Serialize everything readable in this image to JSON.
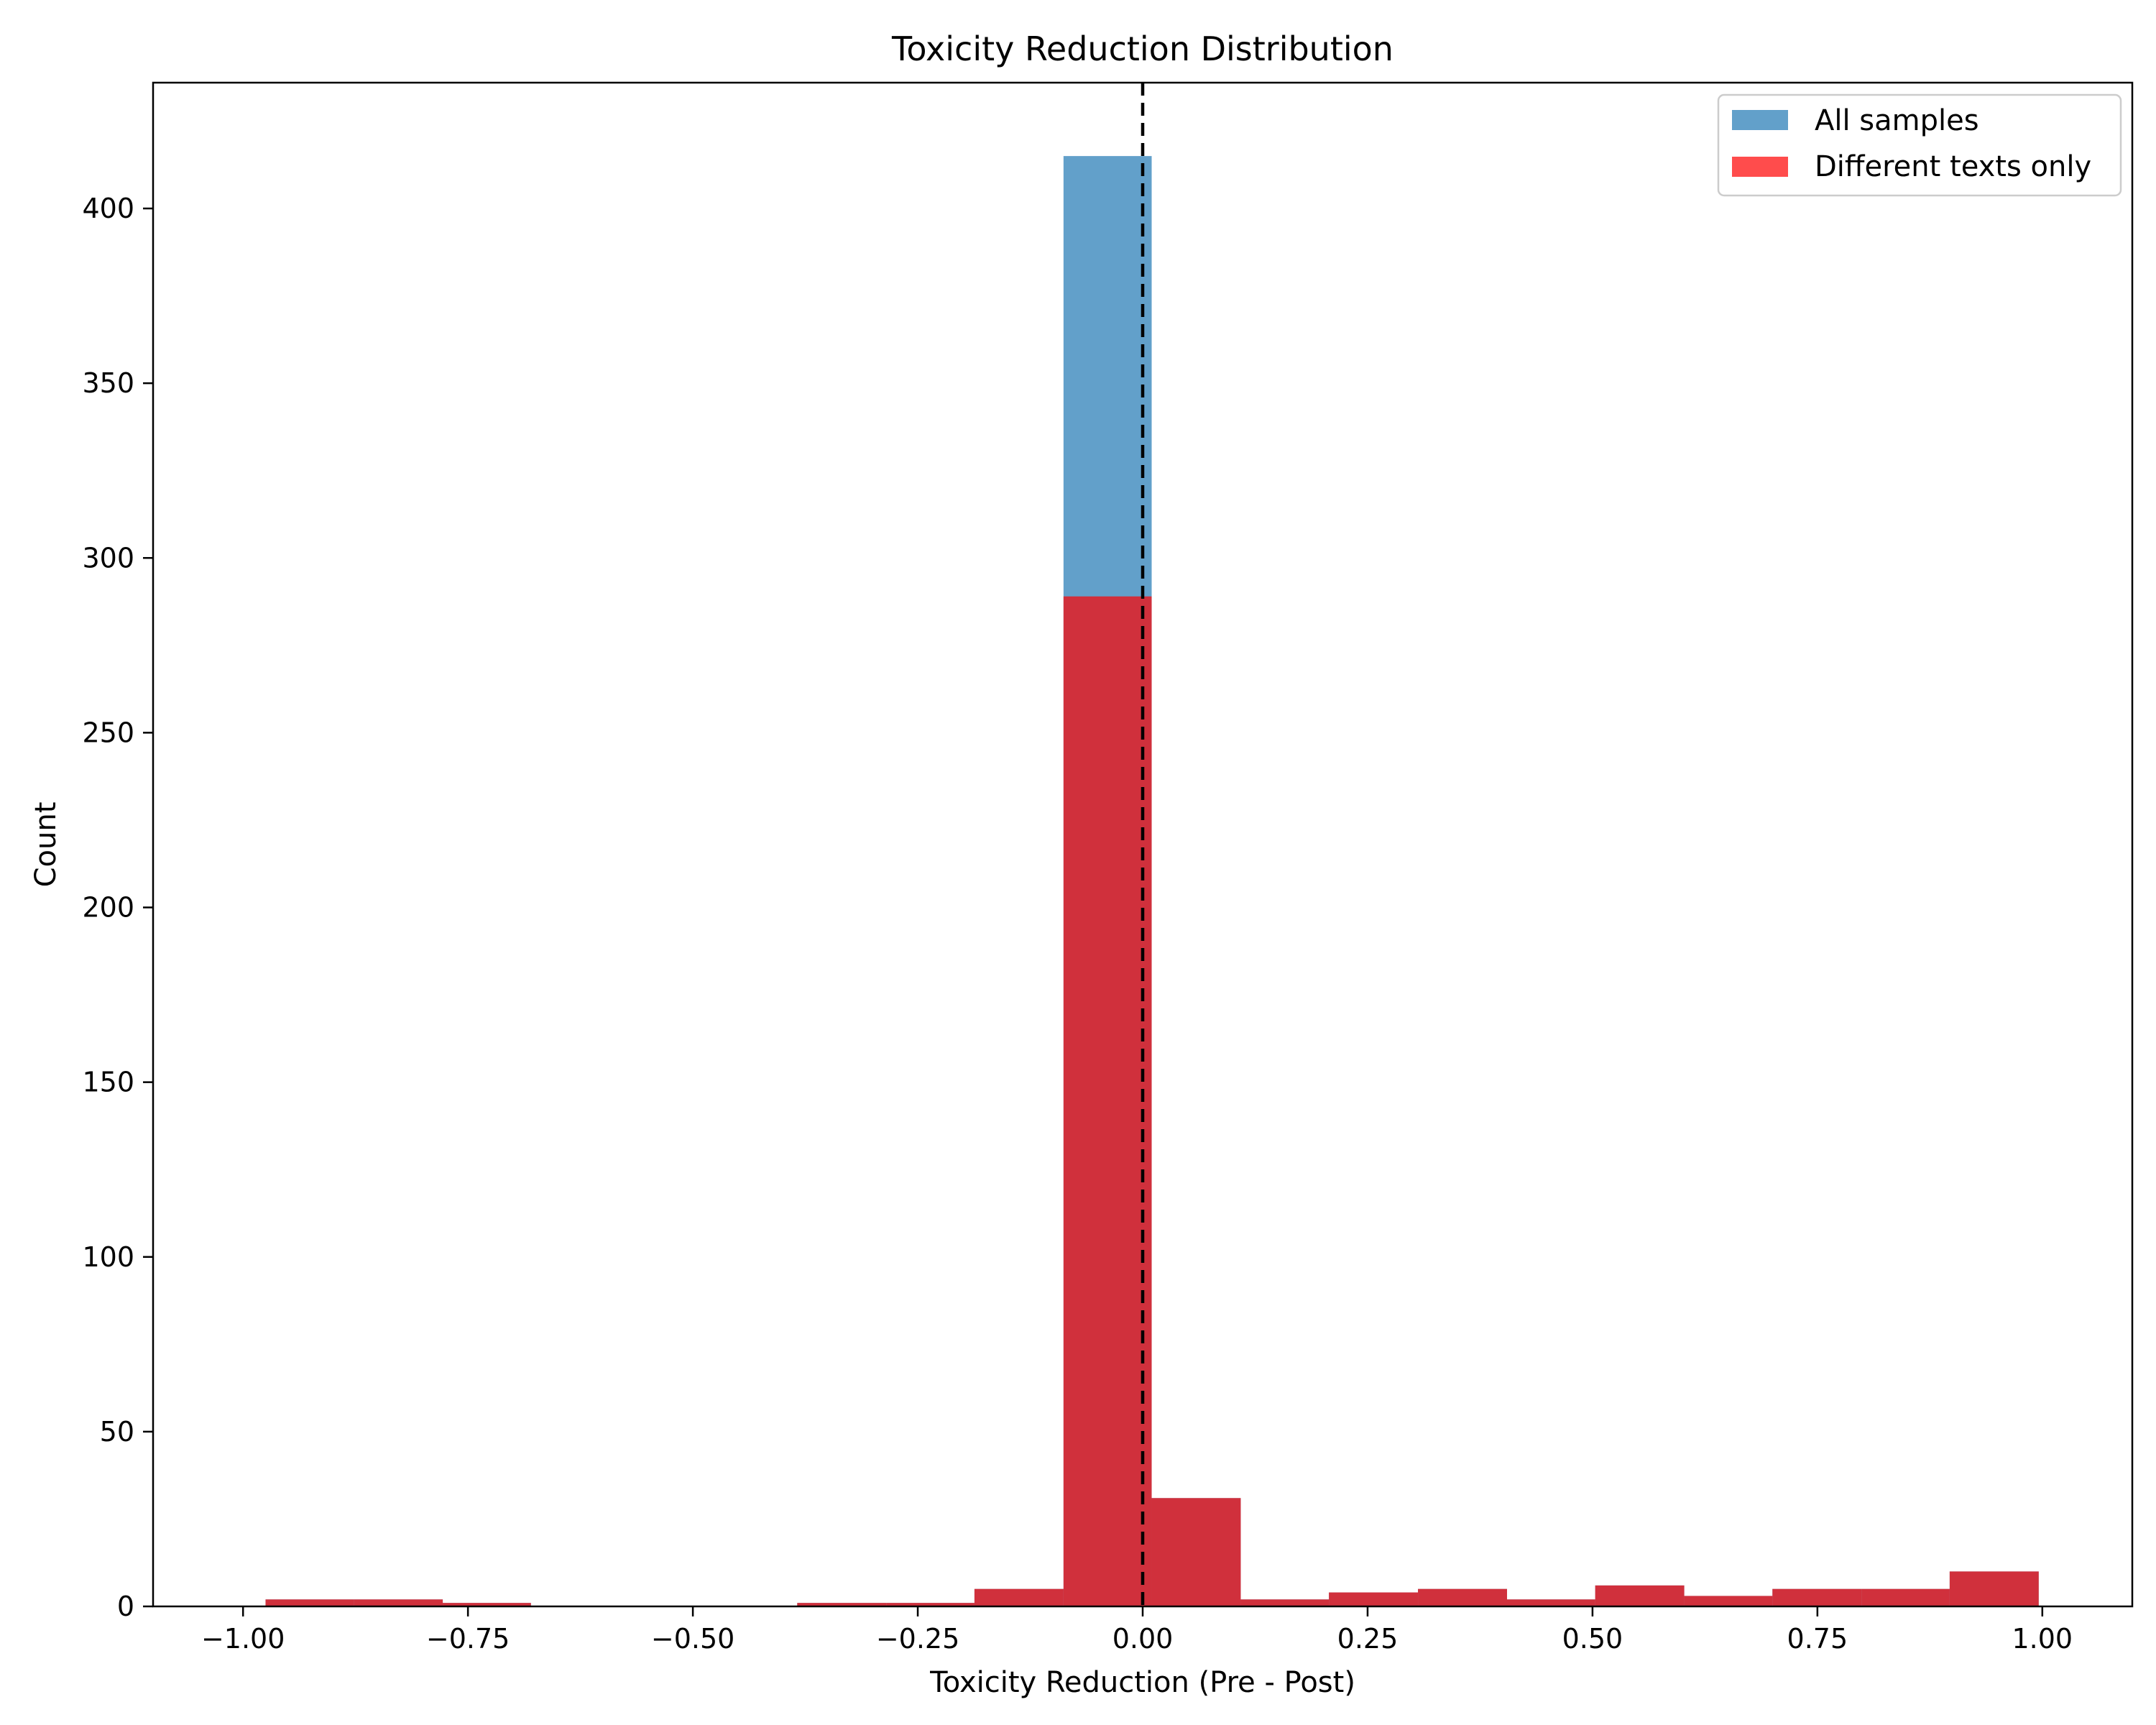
{
  "chart_data": {
    "type": "bar",
    "title": "Toxicity Reduction Distribution",
    "xlabel": "Toxicity Reduction (Pre - Post)",
    "ylabel": "Count",
    "xlim": [
      -1.1,
      1.1
    ],
    "ylim": [
      0,
      436
    ],
    "xticks": [
      -1.0,
      -0.75,
      -0.5,
      -0.25,
      0.0,
      0.25,
      0.5,
      0.75,
      1.0
    ],
    "xtick_labels": [
      "−1.00",
      "−0.75",
      "−0.50",
      "−0.25",
      "0.00",
      "0.25",
      "0.50",
      "0.75",
      "1.00"
    ],
    "yticks": [
      0,
      50,
      100,
      150,
      200,
      250,
      300,
      350,
      400
    ],
    "ytick_labels": [
      "0",
      "50",
      "100",
      "150",
      "200",
      "250",
      "300",
      "350",
      "400"
    ],
    "grid": false,
    "legend_position": "top-right",
    "reference_line": {
      "x": 0.0,
      "style": "dashed",
      "color": "#000000"
    },
    "series": [
      {
        "name": "All samples",
        "color": "#1f77b4",
        "opacity": 0.7,
        "bins": [
          [
            -0.975,
            -0.877,
            2
          ],
          [
            -0.877,
            -0.778,
            2
          ],
          [
            -0.778,
            -0.68,
            1
          ],
          [
            -0.68,
            -0.581,
            0
          ],
          [
            -0.581,
            -0.483,
            0
          ],
          [
            -0.483,
            -0.384,
            0
          ],
          [
            -0.384,
            -0.285,
            1
          ],
          [
            -0.285,
            -0.187,
            1
          ],
          [
            -0.187,
            -0.088,
            5
          ],
          [
            -0.088,
            0.01,
            415
          ],
          [
            0.01,
            0.109,
            31
          ],
          [
            0.109,
            0.207,
            2
          ],
          [
            0.207,
            0.306,
            4
          ],
          [
            0.306,
            0.405,
            5
          ],
          [
            0.405,
            0.503,
            2
          ],
          [
            0.503,
            0.602,
            6
          ],
          [
            0.602,
            0.7,
            3
          ],
          [
            0.7,
            0.799,
            5
          ],
          [
            0.799,
            0.897,
            5
          ],
          [
            0.897,
            0.996,
            10
          ]
        ]
      },
      {
        "name": "Different texts only",
        "color": "#ff0000",
        "opacity": 0.7,
        "bins": [
          [
            -0.975,
            -0.877,
            2
          ],
          [
            -0.877,
            -0.778,
            2
          ],
          [
            -0.778,
            -0.68,
            1
          ],
          [
            -0.68,
            -0.581,
            0
          ],
          [
            -0.581,
            -0.483,
            0
          ],
          [
            -0.483,
            -0.384,
            0
          ],
          [
            -0.384,
            -0.285,
            1
          ],
          [
            -0.285,
            -0.187,
            1
          ],
          [
            -0.187,
            -0.088,
            5
          ],
          [
            -0.088,
            0.01,
            289
          ],
          [
            0.01,
            0.109,
            31
          ],
          [
            0.109,
            0.207,
            2
          ],
          [
            0.207,
            0.306,
            4
          ],
          [
            0.306,
            0.405,
            5
          ],
          [
            0.405,
            0.503,
            2
          ],
          [
            0.503,
            0.602,
            6
          ],
          [
            0.602,
            0.7,
            3
          ],
          [
            0.7,
            0.799,
            5
          ],
          [
            0.799,
            0.897,
            5
          ],
          [
            0.897,
            0.996,
            10
          ]
        ]
      }
    ]
  }
}
